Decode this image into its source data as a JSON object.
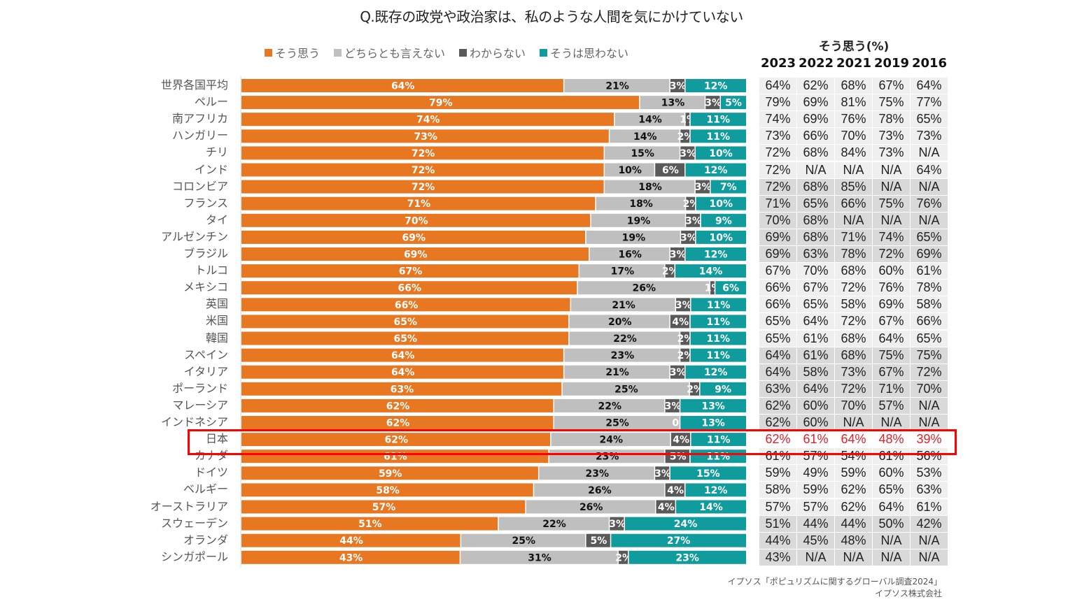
{
  "colors": {
    "agree": "#e87722",
    "neutral": "#bfbfbf",
    "dont_know": "#595959",
    "disagree": "#109c9c",
    "highlight": "#ff0000",
    "highlight_text": "#e0202a"
  },
  "source": {
    "line1": "イプソス「ポピュリズムに関するグローバル調査2024」",
    "line2": "イプソス株式会社"
  },
  "chart_data": {
    "type": "bar",
    "orientation": "horizontal-stacked-100",
    "title": "Q.既存の政党や政治家は、私のような人間を気にかけていない",
    "legend": [
      "そう思う",
      "どちらとも言えない",
      "わからない",
      "そうは思わない"
    ],
    "legend_position": "top",
    "xlim": [
      0,
      100
    ],
    "highlighted_category": "日本",
    "categories": [
      "世界各国平均",
      "ペルー",
      "南アフリカ",
      "ハンガリー",
      "チリ",
      "インド",
      "コロンビア",
      "フランス",
      "タイ",
      "アルゼンチン",
      "ブラジル",
      "トルコ",
      "メキシコ",
      "英国",
      "米国",
      "韓国",
      "スペイン",
      "イタリア",
      "ポーランド",
      "マレーシア",
      "インドネシア",
      "日本",
      "カナダ",
      "ドイツ",
      "ベルギー",
      "オーストラリア",
      "スウェーデン",
      "オランダ",
      "シンガポール"
    ],
    "series": [
      {
        "name": "そう思う",
        "values": [
          64,
          79,
          74,
          73,
          72,
          72,
          72,
          71,
          70,
          69,
          69,
          67,
          66,
          66,
          65,
          65,
          64,
          64,
          63,
          62,
          62,
          62,
          61,
          59,
          58,
          57,
          51,
          44,
          43
        ]
      },
      {
        "name": "どちらとも言えない",
        "values": [
          21,
          13,
          14,
          14,
          15,
          10,
          18,
          18,
          19,
          19,
          16,
          17,
          26,
          21,
          20,
          22,
          23,
          21,
          25,
          22,
          25,
          24,
          23,
          23,
          26,
          26,
          22,
          25,
          31
        ]
      },
      {
        "name": "わからない",
        "values": [
          3,
          3,
          1,
          2,
          3,
          6,
          3,
          2,
          3,
          3,
          3,
          2,
          1,
          3,
          4,
          2,
          2,
          3,
          2,
          3,
          0,
          4,
          5,
          3,
          4,
          4,
          3,
          5,
          2
        ]
      },
      {
        "name": "そうは思わない",
        "values": [
          12,
          5,
          11,
          11,
          10,
          12,
          7,
          10,
          9,
          10,
          12,
          14,
          6,
          11,
          11,
          11,
          11,
          12,
          9,
          13,
          13,
          11,
          11,
          15,
          12,
          14,
          24,
          27,
          23
        ]
      }
    ],
    "table": {
      "title": "そう思う(%)",
      "columns": [
        "2023",
        "2022",
        "2021",
        "2019",
        "2016"
      ],
      "rows": [
        [
          "64%",
          "62%",
          "68%",
          "67%",
          "64%"
        ],
        [
          "79%",
          "69%",
          "81%",
          "75%",
          "77%"
        ],
        [
          "74%",
          "69%",
          "76%",
          "78%",
          "65%"
        ],
        [
          "73%",
          "66%",
          "70%",
          "73%",
          "73%"
        ],
        [
          "72%",
          "68%",
          "84%",
          "73%",
          "N/A"
        ],
        [
          "72%",
          "N/A",
          "N/A",
          "N/A",
          "64%"
        ],
        [
          "72%",
          "68%",
          "85%",
          "N/A",
          "N/A"
        ],
        [
          "71%",
          "65%",
          "66%",
          "75%",
          "76%"
        ],
        [
          "70%",
          "68%",
          "N/A",
          "N/A",
          "N/A"
        ],
        [
          "69%",
          "68%",
          "71%",
          "74%",
          "65%"
        ],
        [
          "69%",
          "63%",
          "78%",
          "72%",
          "69%"
        ],
        [
          "67%",
          "70%",
          "68%",
          "60%",
          "61%"
        ],
        [
          "66%",
          "67%",
          "72%",
          "76%",
          "78%"
        ],
        [
          "66%",
          "65%",
          "58%",
          "69%",
          "58%"
        ],
        [
          "65%",
          "64%",
          "72%",
          "67%",
          "66%"
        ],
        [
          "65%",
          "61%",
          "68%",
          "64%",
          "65%"
        ],
        [
          "64%",
          "61%",
          "68%",
          "75%",
          "75%"
        ],
        [
          "64%",
          "58%",
          "73%",
          "67%",
          "72%"
        ],
        [
          "63%",
          "64%",
          "72%",
          "71%",
          "70%"
        ],
        [
          "62%",
          "60%",
          "70%",
          "57%",
          "N/A"
        ],
        [
          "62%",
          "60%",
          "N/A",
          "N/A",
          "N/A"
        ],
        [
          "62%",
          "61%",
          "64%",
          "48%",
          "39%"
        ],
        [
          "61%",
          "57%",
          "54%",
          "61%",
          "56%"
        ],
        [
          "59%",
          "49%",
          "59%",
          "60%",
          "53%"
        ],
        [
          "58%",
          "59%",
          "62%",
          "65%",
          "63%"
        ],
        [
          "57%",
          "57%",
          "62%",
          "64%",
          "61%"
        ],
        [
          "51%",
          "44%",
          "44%",
          "50%",
          "42%"
        ],
        [
          "44%",
          "45%",
          "48%",
          "N/A",
          "N/A"
        ],
        [
          "43%",
          "N/A",
          "N/A",
          "N/A",
          "N/A"
        ]
      ],
      "row_shading": [
        "light",
        "light",
        "light",
        "light",
        "light",
        "light",
        "dark",
        "dark",
        "dark",
        "dark",
        "dark",
        "light",
        "light",
        "light",
        "light",
        "light",
        "dark",
        "dark",
        "dark",
        "dark",
        "dark",
        "highlight",
        "light",
        "light",
        "light",
        "light",
        "dark",
        "dark",
        "dark"
      ]
    }
  }
}
